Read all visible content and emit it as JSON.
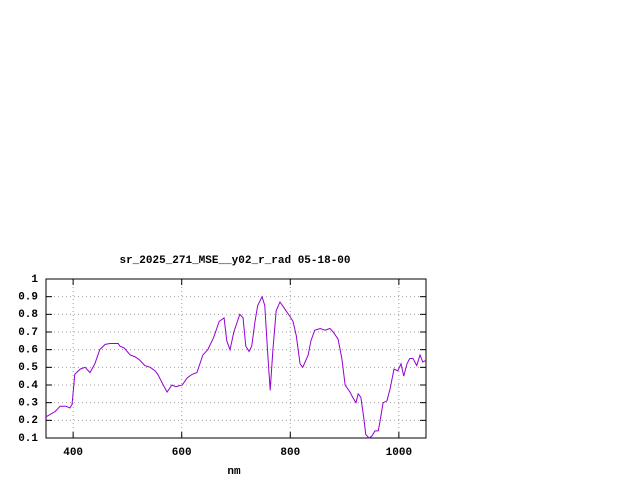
{
  "chart_data": {
    "type": "line",
    "title": "sr_2025_271_MSE__y02_r_rad 05-18-00",
    "x_label": "nm",
    "x": [
      350,
      367,
      376,
      387,
      394,
      398,
      403,
      413,
      422,
      431,
      440,
      449,
      459,
      468,
      483,
      486,
      494,
      505,
      514,
      523,
      532,
      542,
      551,
      556,
      566,
      573,
      582,
      589,
      601,
      610,
      619,
      628,
      639,
      648,
      659,
      669,
      678,
      683,
      689,
      696,
      707,
      713,
      718,
      724,
      729,
      735,
      740,
      748,
      753,
      759,
      763,
      768,
      774,
      781,
      790,
      799,
      805,
      811,
      818,
      823,
      833,
      838,
      845,
      855,
      864,
      873,
      879,
      888,
      895,
      901,
      910,
      915,
      921,
      925,
      930,
      936,
      939,
      945,
      950,
      956,
      962,
      965,
      971,
      978,
      984,
      991,
      998,
      1004,
      1009,
      1015,
      1020,
      1026,
      1033,
      1039,
      1044,
      1050
    ],
    "series": [
      {
        "color": "#9400d3",
        "values": [
          0.22,
          0.25,
          0.28,
          0.28,
          0.27,
          0.29,
          0.46,
          0.49,
          0.5,
          0.47,
          0.52,
          0.6,
          0.63,
          0.635,
          0.635,
          0.62,
          0.61,
          0.57,
          0.56,
          0.54,
          0.51,
          0.5,
          0.48,
          0.46,
          0.4,
          0.36,
          0.4,
          0.39,
          0.4,
          0.44,
          0.46,
          0.47,
          0.57,
          0.6,
          0.67,
          0.76,
          0.78,
          0.65,
          0.6,
          0.7,
          0.8,
          0.78,
          0.62,
          0.59,
          0.62,
          0.76,
          0.85,
          0.9,
          0.85,
          0.55,
          0.37,
          0.6,
          0.82,
          0.87,
          0.83,
          0.79,
          0.76,
          0.68,
          0.52,
          0.5,
          0.57,
          0.65,
          0.71,
          0.72,
          0.71,
          0.72,
          0.7,
          0.66,
          0.55,
          0.4,
          0.36,
          0.33,
          0.3,
          0.35,
          0.33,
          0.2,
          0.12,
          0.1,
          0.11,
          0.14,
          0.14,
          0.19,
          0.3,
          0.31,
          0.38,
          0.49,
          0.48,
          0.52,
          0.45,
          0.52,
          0.55,
          0.55,
          0.51,
          0.57,
          0.53,
          0.54
        ]
      }
    ],
    "xlim": [
      350,
      1050
    ],
    "xticks": [
      400,
      600,
      800,
      1000
    ],
    "ylim": [
      0.1,
      1
    ],
    "yticks": [
      0.1,
      0.2,
      0.3,
      0.4,
      0.5,
      0.6,
      0.7,
      0.8,
      0.9,
      1
    ],
    "grid": true
  }
}
